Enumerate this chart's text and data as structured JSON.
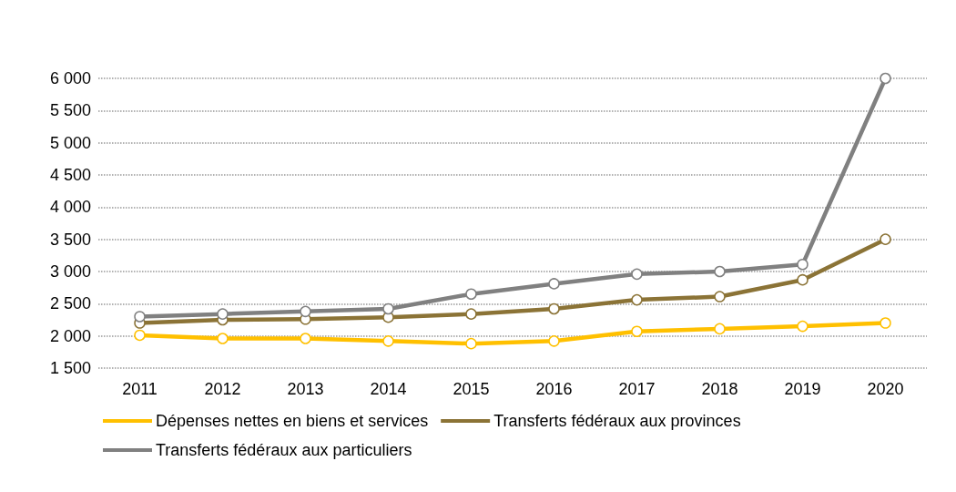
{
  "chart_data": {
    "type": "line",
    "categories": [
      "2011",
      "2012",
      "2013",
      "2014",
      "2015",
      "2016",
      "2017",
      "2018",
      "2019",
      "2020"
    ],
    "series": [
      {
        "name": "Dépenses nettes en biens et services",
        "color": "#ffc000",
        "values": [
          2010,
          1960,
          1960,
          1920,
          1880,
          1920,
          2070,
          2110,
          2150,
          2200
        ]
      },
      {
        "name": "Transferts fédéraux aux provinces",
        "color": "#8b7336",
        "values": [
          2200,
          2250,
          2260,
          2290,
          2340,
          2420,
          2560,
          2610,
          2870,
          3500
        ]
      },
      {
        "name": "Transferts fédéraux aux particuliers",
        "color": "#808080",
        "values": [
          2300,
          2340,
          2380,
          2420,
          2650,
          2810,
          2960,
          3000,
          3110,
          6000
        ]
      }
    ],
    "ylim": [
      1500,
      6000
    ],
    "yticks": [
      {
        "value": 1500,
        "label": "1 500"
      },
      {
        "value": 2000,
        "label": "2 000"
      },
      {
        "value": 2500,
        "label": "2 500"
      },
      {
        "value": 3000,
        "label": "3 000"
      },
      {
        "value": 3500,
        "label": "3 500"
      },
      {
        "value": 4000,
        "label": "4 000"
      },
      {
        "value": 4500,
        "label": "4 500"
      },
      {
        "value": 5000,
        "label": "5 000"
      },
      {
        "value": 5500,
        "label": "5 500"
      },
      {
        "value": 6000,
        "label": "6 000"
      }
    ],
    "grid": "y",
    "legend": "bottom",
    "marker": "circle",
    "line_style": "solid"
  }
}
